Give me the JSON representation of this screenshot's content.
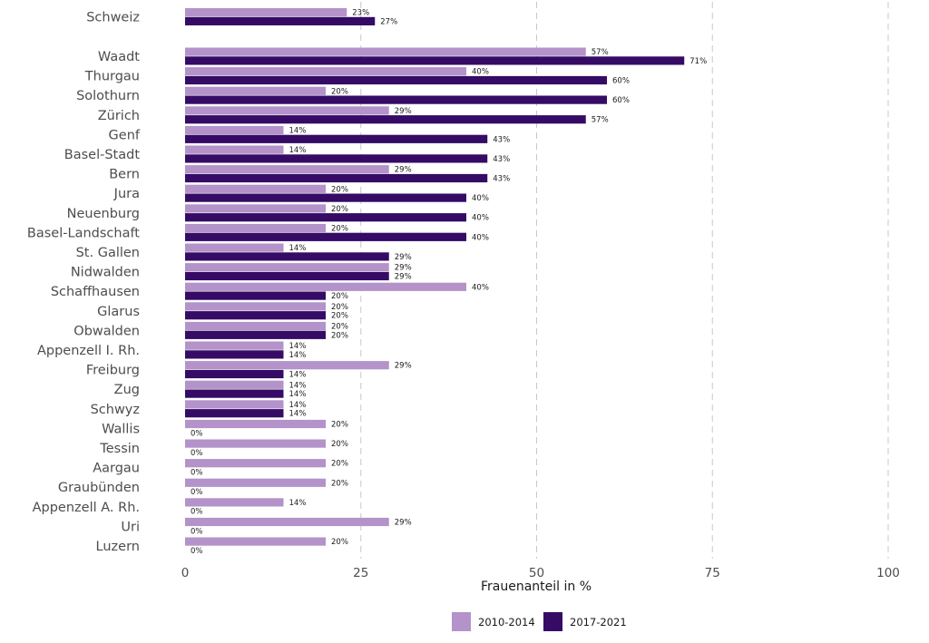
{
  "chart_data": {
    "type": "bar",
    "orientation": "horizontal",
    "xlabel": "Frauenanteil in %",
    "xlim": [
      0,
      100
    ],
    "xticks": [
      0,
      25,
      50,
      75,
      100
    ],
    "grid": "vertical-dashed",
    "legend_position": "bottom",
    "categories": [
      "Schweiz",
      "Waadt",
      "Thurgau",
      "Solothurn",
      "Zürich",
      "Genf",
      "Basel-Stadt",
      "Bern",
      "Jura",
      "Neuenburg",
      "Basel-Landschaft",
      "St. Gallen",
      "Nidwalden",
      "Schaffhausen",
      "Glarus",
      "Obwalden",
      "Appenzell I. Rh.",
      "Freiburg",
      "Zug",
      "Schwyz",
      "Wallis",
      "Tessin",
      "Aargau",
      "Graubünden",
      "Appenzell A. Rh.",
      "Uri",
      "Luzern"
    ],
    "series": [
      {
        "name": "2010-2014",
        "color": "#b393c9",
        "values": [
          23,
          57,
          40,
          20,
          29,
          14,
          14,
          29,
          20,
          20,
          20,
          14,
          29,
          40,
          20,
          20,
          14,
          29,
          14,
          14,
          20,
          20,
          20,
          20,
          14,
          29,
          20
        ],
        "labels": [
          "23%",
          "57%",
          "40%",
          "20%",
          "29%",
          "14%",
          "14%",
          "29%",
          "20%",
          "20%",
          "20%",
          "14%",
          "29%",
          "40%",
          "20%",
          "20%",
          "14%",
          "29%",
          "14%",
          "14%",
          "20%",
          "20%",
          "20%",
          "20%",
          "14%",
          "29%",
          "20%"
        ]
      },
      {
        "name": "2017-2021",
        "color": "#350b65",
        "values": [
          27,
          71,
          60,
          60,
          57,
          43,
          43,
          43,
          40,
          40,
          40,
          29,
          29,
          20,
          20,
          20,
          14,
          14,
          14,
          14,
          0,
          0,
          0,
          0,
          0,
          0,
          0
        ],
        "labels": [
          "27%",
          "71%",
          "60%",
          "60%",
          "57%",
          "43%",
          "43%",
          "43%",
          "40%",
          "40%",
          "40%",
          "29%",
          "29%",
          "20%",
          "20%",
          "20%",
          "14%",
          "14%",
          "14%",
          "14%",
          "0%",
          "0%",
          "0%",
          "0%",
          "0%",
          "0%",
          "0%"
        ]
      }
    ]
  }
}
